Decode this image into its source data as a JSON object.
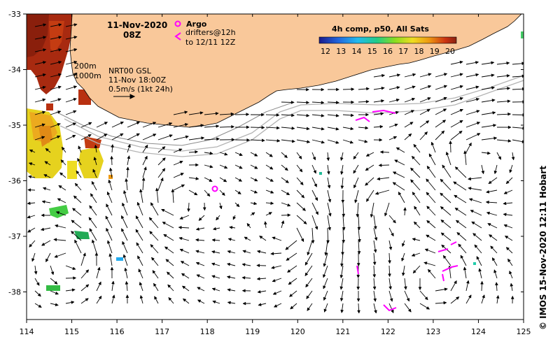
{
  "map": {
    "date": "11-Nov-2020",
    "time": "08Z",
    "argo_label": "Argo",
    "drifter_label_1": "drifters@12h",
    "drifter_label_2": "to 12/11 12Z",
    "depth_200": "200m",
    "depth_1000": "1000m",
    "nrt_label": "NRT00 GSL",
    "nrt_time": "11-Nov 18:00Z",
    "vel_scale": "0.5m/s (1kt 24h)",
    "colorbar_title": "4h comp, p50, All Sats",
    "colorbar_ticks": [
      "12",
      "13",
      "14",
      "15",
      "16",
      "17",
      "18",
      "19",
      "20"
    ],
    "x_ticks": [
      "114",
      "115",
      "116",
      "117",
      "118",
      "119",
      "120",
      "121",
      "122",
      "123",
      "124",
      "125"
    ],
    "y_ticks": [
      "-33",
      "-34",
      "-35",
      "-36",
      "-37",
      "-38"
    ],
    "credit": "© IMOS 15-Nov-2020 12:11 Hobart",
    "colors": {
      "land": "#f9c89a",
      "argo": "#ff00ff",
      "drifter": "#ff00ff",
      "contour": "#b4b4b4"
    }
  }
}
